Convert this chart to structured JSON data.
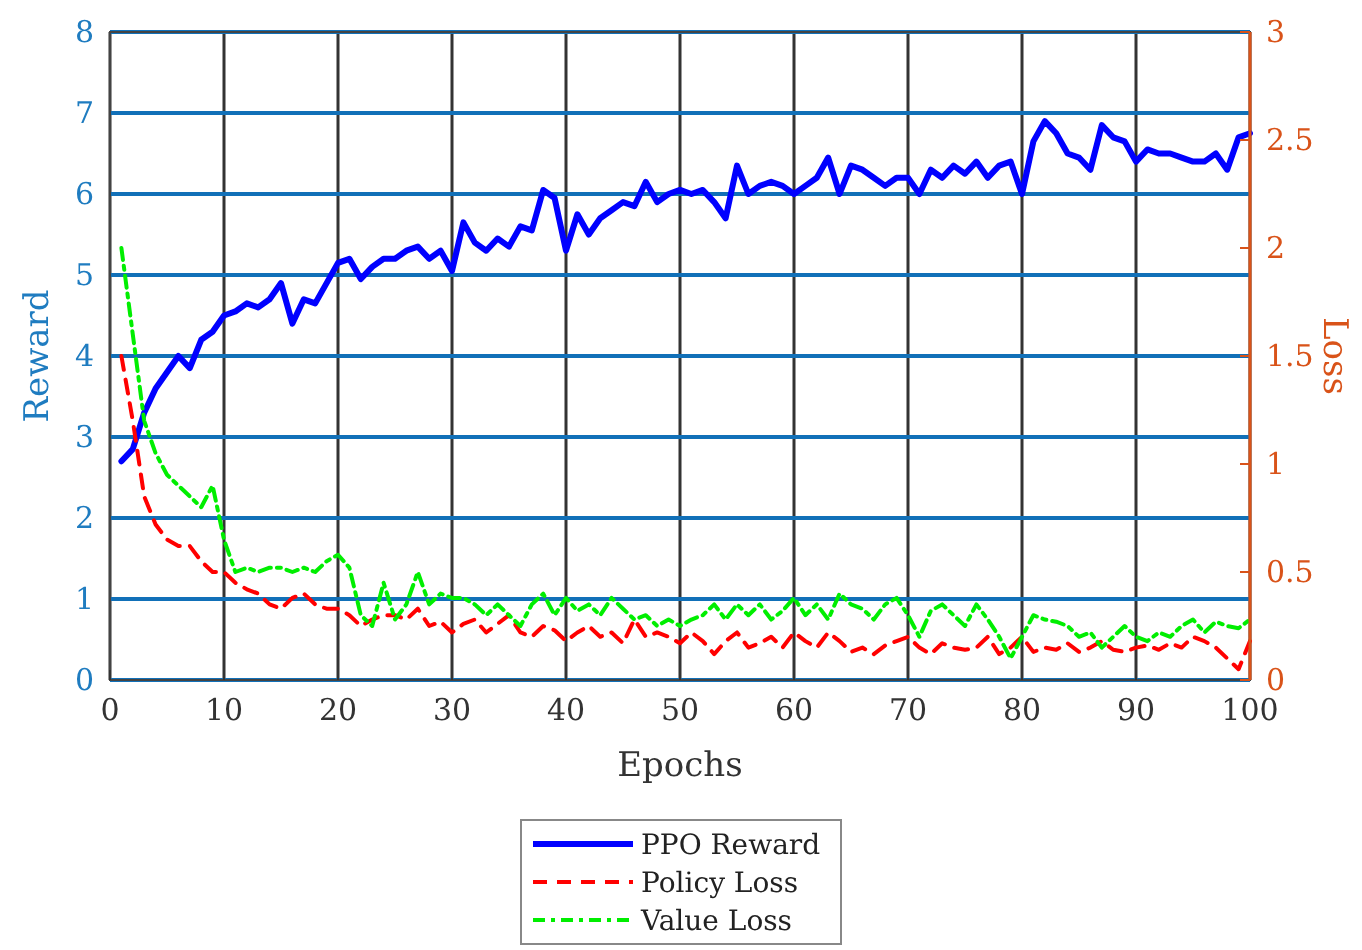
{
  "chart_data": {
    "type": "line",
    "xlabel": "Epochs",
    "ylabel": "Reward",
    "y2label": "Loss",
    "xlim": [
      0,
      100
    ],
    "xticks": [
      0,
      10,
      20,
      30,
      40,
      50,
      60,
      70,
      80,
      90,
      100
    ],
    "ylim": [
      0,
      8
    ],
    "yticks": [
      0,
      1,
      2,
      3,
      4,
      5,
      6,
      7,
      8
    ],
    "y2lim": [
      0,
      3
    ],
    "y2ticks": [
      0,
      0.5,
      1,
      1.5,
      2,
      2.5,
      3
    ],
    "grid": true,
    "legend": "bottom",
    "x": [
      1,
      2,
      3,
      4,
      5,
      6,
      7,
      8,
      9,
      10,
      11,
      12,
      13,
      14,
      15,
      16,
      17,
      18,
      19,
      20,
      21,
      22,
      23,
      24,
      25,
      26,
      27,
      28,
      29,
      30,
      31,
      32,
      33,
      34,
      35,
      36,
      37,
      38,
      39,
      40,
      41,
      42,
      43,
      44,
      45,
      46,
      47,
      48,
      49,
      50,
      51,
      52,
      53,
      54,
      55,
      56,
      57,
      58,
      59,
      60,
      61,
      62,
      63,
      64,
      65,
      66,
      67,
      68,
      69,
      70,
      71,
      72,
      73,
      74,
      75,
      76,
      77,
      78,
      79,
      80,
      81,
      82,
      83,
      84,
      85,
      86,
      87,
      88,
      89,
      90,
      91,
      92,
      93,
      94,
      95,
      96,
      97,
      98,
      99,
      100
    ],
    "series": [
      {
        "name": "PPO Reward",
        "color": "#0000ff",
        "line_style": "solid",
        "values": [
          2.7,
          2.85,
          3.3,
          3.6,
          3.8,
          4.0,
          3.85,
          4.2,
          4.3,
          4.5,
          4.55,
          4.65,
          4.6,
          4.7,
          4.9,
          4.4,
          4.7,
          4.65,
          4.9,
          5.15,
          5.2,
          4.95,
          5.1,
          5.2,
          5.2,
          5.3,
          5.35,
          5.2,
          5.3,
          5.05,
          5.65,
          5.4,
          5.3,
          5.45,
          5.35,
          5.6,
          5.55,
          6.05,
          5.95,
          5.3,
          5.75,
          5.5,
          5.7,
          5.8,
          5.9,
          5.85,
          6.15,
          5.9,
          6.0,
          6.05,
          6.0,
          6.05,
          5.9,
          5.7,
          6.35,
          6.0,
          6.1,
          6.15,
          6.1,
          6.0,
          6.1,
          6.2,
          6.45,
          6.0,
          6.35,
          6.3,
          6.2,
          6.1,
          6.2,
          6.2,
          6.0,
          6.3,
          6.2,
          6.35,
          6.25,
          6.4,
          6.2,
          6.35,
          6.4,
          6.0,
          6.65,
          6.9,
          6.75,
          6.5,
          6.45,
          6.3,
          6.85,
          6.7,
          6.65,
          6.4,
          6.55,
          6.5,
          6.5,
          6.45,
          6.4,
          6.4,
          6.5,
          6.3,
          6.7,
          6.75
        ]
      },
      {
        "name": "Policy Loss",
        "color": "#ff0000",
        "line_style": "dashed",
        "axis": "y2",
        "values": [
          1.5,
          1.2,
          0.85,
          0.72,
          0.65,
          0.62,
          0.62,
          0.55,
          0.5,
          0.5,
          0.45,
          0.42,
          0.4,
          0.35,
          0.33,
          0.38,
          0.4,
          0.35,
          0.33,
          0.33,
          0.3,
          0.25,
          0.28,
          0.3,
          0.3,
          0.28,
          0.33,
          0.25,
          0.27,
          0.22,
          0.26,
          0.28,
          0.22,
          0.26,
          0.3,
          0.22,
          0.2,
          0.25,
          0.23,
          0.18,
          0.22,
          0.25,
          0.2,
          0.22,
          0.17,
          0.28,
          0.2,
          0.22,
          0.2,
          0.17,
          0.22,
          0.18,
          0.12,
          0.18,
          0.22,
          0.15,
          0.17,
          0.2,
          0.15,
          0.22,
          0.18,
          0.15,
          0.22,
          0.18,
          0.13,
          0.15,
          0.12,
          0.16,
          0.18,
          0.2,
          0.15,
          0.12,
          0.17,
          0.15,
          0.14,
          0.15,
          0.2,
          0.12,
          0.15,
          0.2,
          0.13,
          0.15,
          0.14,
          0.17,
          0.13,
          0.15,
          0.18,
          0.14,
          0.13,
          0.15,
          0.16,
          0.14,
          0.17,
          0.15,
          0.2,
          0.18,
          0.15,
          0.1,
          0.05,
          0.18
        ]
      },
      {
        "name": "Value Loss",
        "color": "#00ee00",
        "line_style": "dotted",
        "axis": "y2",
        "values": [
          2.0,
          1.6,
          1.2,
          1.05,
          0.95,
          0.9,
          0.85,
          0.8,
          0.9,
          0.65,
          0.5,
          0.52,
          0.5,
          0.52,
          0.52,
          0.5,
          0.52,
          0.5,
          0.55,
          0.58,
          0.52,
          0.3,
          0.25,
          0.45,
          0.28,
          0.35,
          0.5,
          0.35,
          0.4,
          0.38,
          0.38,
          0.35,
          0.3,
          0.35,
          0.3,
          0.25,
          0.35,
          0.4,
          0.3,
          0.38,
          0.32,
          0.35,
          0.3,
          0.38,
          0.33,
          0.28,
          0.3,
          0.25,
          0.28,
          0.25,
          0.28,
          0.3,
          0.35,
          0.28,
          0.35,
          0.3,
          0.35,
          0.28,
          0.32,
          0.38,
          0.3,
          0.35,
          0.28,
          0.4,
          0.35,
          0.33,
          0.28,
          0.35,
          0.38,
          0.3,
          0.2,
          0.32,
          0.35,
          0.3,
          0.25,
          0.35,
          0.28,
          0.2,
          0.1,
          0.2,
          0.3,
          0.28,
          0.27,
          0.25,
          0.2,
          0.22,
          0.15,
          0.2,
          0.25,
          0.2,
          0.18,
          0.22,
          0.2,
          0.25,
          0.28,
          0.22,
          0.27,
          0.25,
          0.24,
          0.28
        ]
      }
    ]
  }
}
